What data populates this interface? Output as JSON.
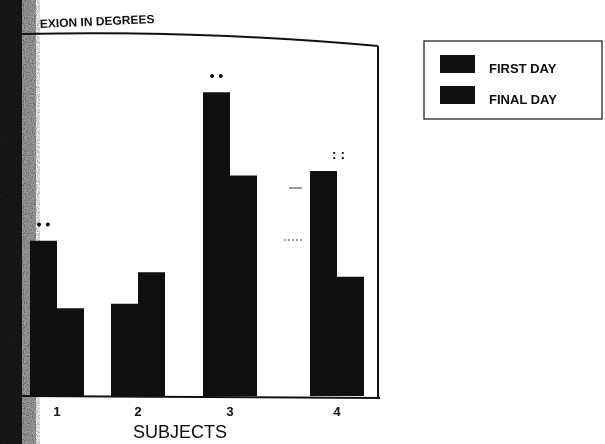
{
  "chart_data": {
    "type": "bar",
    "title": "EXION IN DEGREES",
    "xlabel": "SUBJECTS",
    "ylabel": "",
    "categories": [
      "1",
      "2",
      "3",
      "4"
    ],
    "series": [
      {
        "name": "FIRST DAY",
        "values": [
          69,
          41,
          135,
          100
        ]
      },
      {
        "name": "FINAL DAY",
        "values": [
          39,
          55,
          98,
          53
        ]
      }
    ],
    "ylim": [
      0,
      160
    ],
    "grid": false,
    "legend": "top-right",
    "annotations": [
      "• •",
      "• •",
      ": :"
    ],
    "colors": {
      "bars": "#0f0f0f",
      "background": "#ffffff",
      "text": "#111111"
    }
  }
}
